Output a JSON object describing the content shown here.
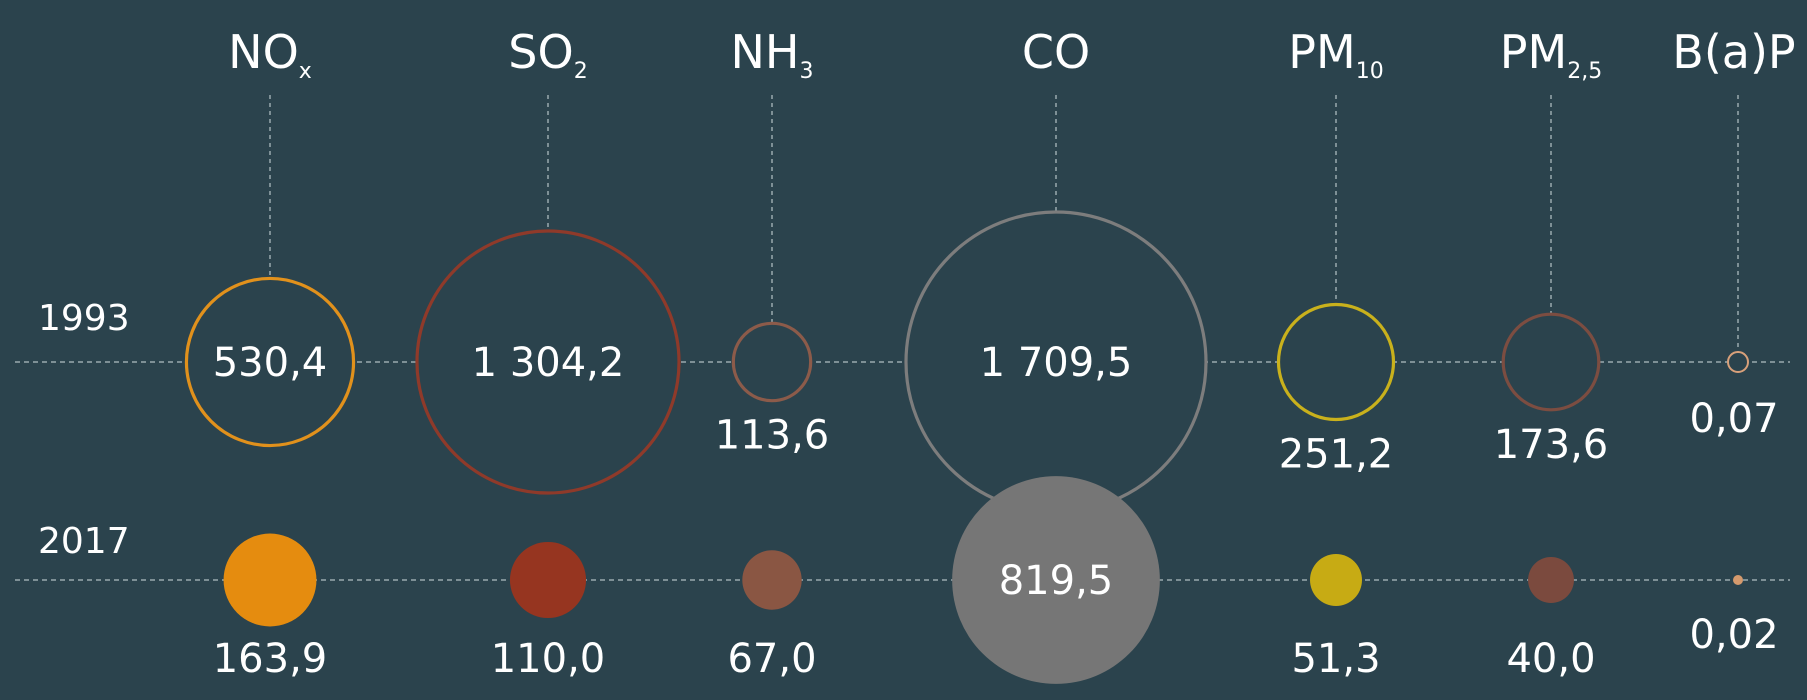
{
  "colors": {
    "background": "#2b434d",
    "guide": "#9aa9af",
    "text": "#ffffff"
  },
  "chart_data": {
    "type": "bubble",
    "title": "",
    "years": [
      "1993",
      "2017"
    ],
    "pollutants": [
      {
        "label": "NO",
        "sub": "x",
        "v1993": 530.4,
        "t1993": "530,4",
        "v2017": 163.9,
        "t2017": "163,9",
        "color": "#e58c0f",
        "stroke": "#e1911c"
      },
      {
        "label": "SO",
        "sub": "2",
        "v1993": 1304.2,
        "t1993": "1 304,2",
        "v2017": 110.0,
        "t2017": "110,0",
        "color": "#963520",
        "stroke": "#8f3a2a"
      },
      {
        "label": "NH",
        "sub": "3",
        "v1993": 113.6,
        "t1993": "113,6",
        "v2017": 67.0,
        "t2017": "67,0",
        "color": "#8a5643",
        "stroke": "#8c5b4a"
      },
      {
        "label": "CO",
        "sub": "",
        "v1993": 1709.5,
        "t1993": "1 709,5",
        "v2017": 819.5,
        "t2017": "819,5",
        "color": "#767676",
        "stroke": "#7d7d7d"
      },
      {
        "label": "PM",
        "sub": "10",
        "v1993": 251.2,
        "t1993": "251,2",
        "v2017": 51.3,
        "t2017": "51,3",
        "color": "#c7ab14",
        "stroke": "#c9b11c"
      },
      {
        "label": "PM",
        "sub": "2,5",
        "v1993": 173.6,
        "t1993": "173,6",
        "v2017": 40.0,
        "t2017": "40,0",
        "color": "#7b4a3e",
        "stroke": "#7c4d41"
      },
      {
        "label": "B(a)P",
        "sub": "",
        "v1993": 0.07,
        "t1993": "0,07",
        "v2017": 0.02,
        "t2017": "0,02",
        "color": "#d59a6d",
        "stroke": "#d8a07a"
      }
    ]
  }
}
